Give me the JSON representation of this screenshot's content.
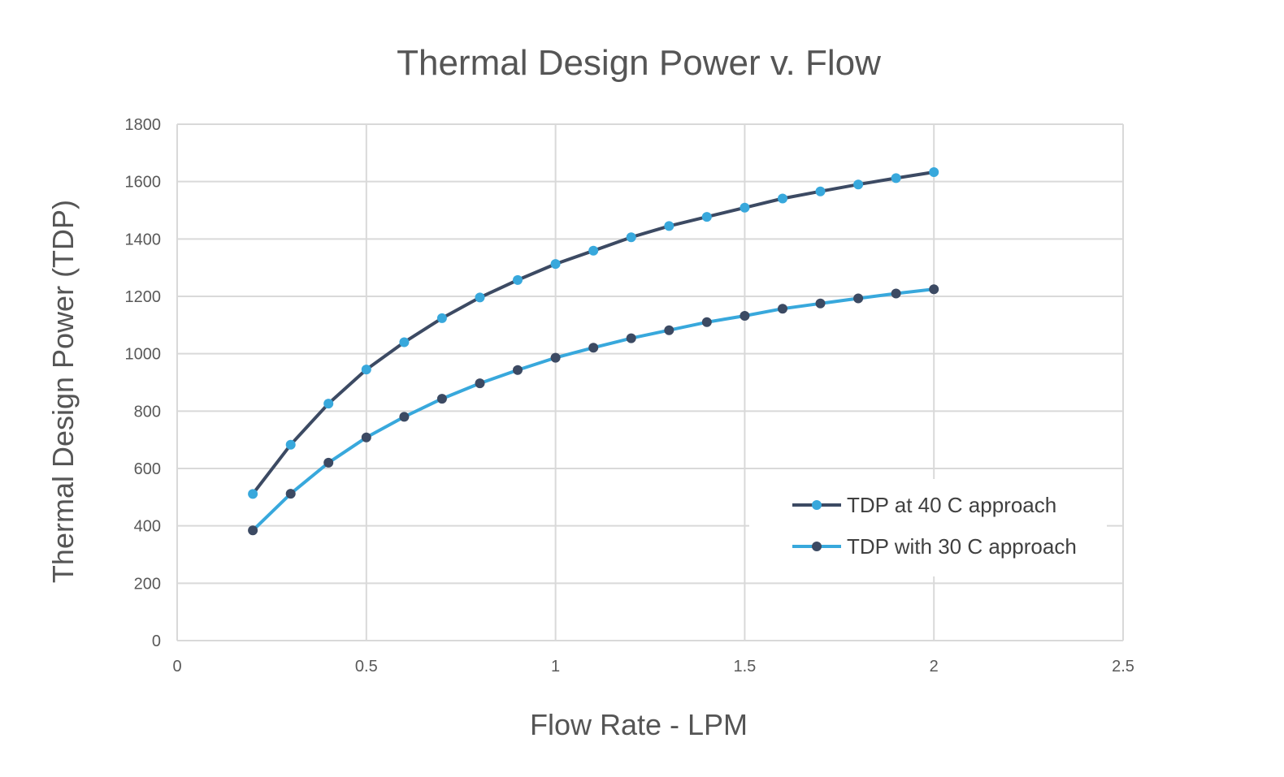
{
  "chart_data": {
    "type": "line",
    "title": "Thermal Design Power v. Flow",
    "xlabel": "Flow Rate - LPM",
    "ylabel": "Thermal Design Power (TDP)",
    "xlim": [
      0,
      2.5
    ],
    "ylim": [
      0,
      1800
    ],
    "x_ticks": [
      "0",
      "0.5",
      "1",
      "1.5",
      "2",
      "2.5"
    ],
    "y_ticks": [
      "0",
      "200",
      "400",
      "600",
      "800",
      "1000",
      "1200",
      "1400",
      "1600",
      "1800"
    ],
    "grid": true,
    "legend_position": "bottom-right",
    "x": [
      0.2,
      0.3,
      0.4,
      0.5,
      0.6,
      0.7,
      0.8,
      0.9,
      1.0,
      1.1,
      1.2,
      1.3,
      1.4,
      1.5,
      1.6,
      1.7,
      1.8,
      1.9,
      2.0
    ],
    "series": [
      {
        "name": "TDP at 40 C approach",
        "line_color": "#3c4a63",
        "marker_color": "#38a8dc",
        "values": [
          511,
          683,
          826,
          945,
          1040,
          1124,
          1196,
          1257,
          1313,
          1359,
          1406,
          1445,
          1477,
          1509,
          1541,
          1566,
          1590,
          1612,
          1633
        ]
      },
      {
        "name": "TDP with 30 C approach",
        "line_color": "#38a8dc",
        "marker_color": "#3c4a63",
        "values": [
          384,
          512,
          620,
          708,
          780,
          843,
          897,
          943,
          986,
          1021,
          1054,
          1082,
          1110,
          1132,
          1157,
          1175,
          1193,
          1210,
          1225
        ]
      }
    ]
  }
}
